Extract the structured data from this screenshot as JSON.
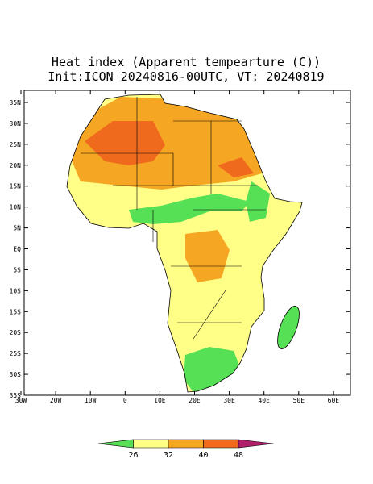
{
  "header": {
    "title": "Heat index (Apparent tempearture (C))",
    "subtitle": "Init:ICON 20240816-00UTC, VT: 20240819"
  },
  "map": {
    "lat_ticks": [
      "35N",
      "30N",
      "25N",
      "20N",
      "15N",
      "10N",
      "5N",
      "EQ",
      "5S",
      "10S",
      "15S",
      "20S",
      "25S",
      "30S",
      "35S"
    ],
    "lon_ticks": [
      "30W",
      "20W",
      "10W",
      "0",
      "10E",
      "20E",
      "30E",
      "40E",
      "50E",
      "60E"
    ]
  },
  "colorbar": {
    "labels": [
      "26",
      "32",
      "40",
      "48"
    ],
    "colors": [
      "#55e055",
      "#ffff88",
      "#f5a623",
      "#f06a1e",
      "#b0206a"
    ]
  }
}
